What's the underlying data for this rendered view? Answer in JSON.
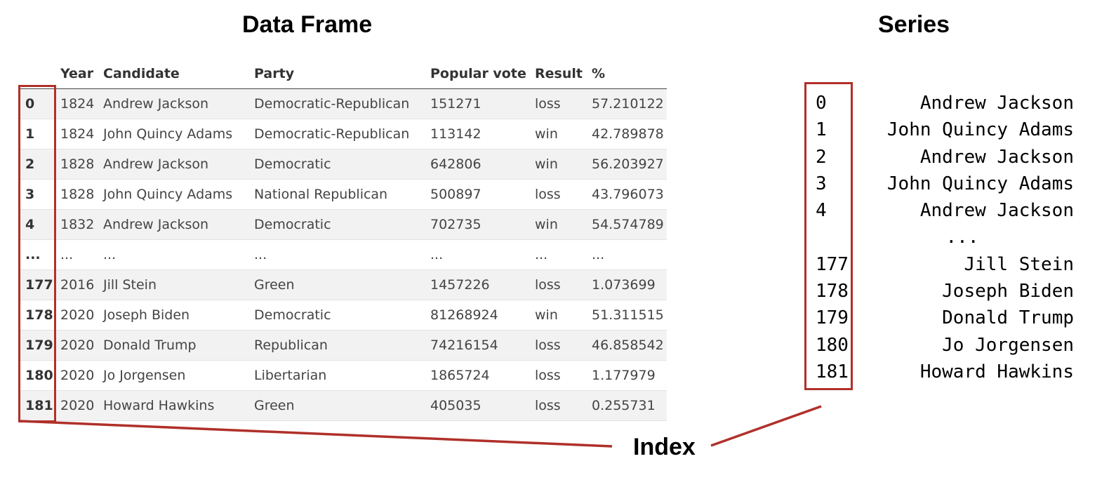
{
  "titles": {
    "data_frame": "Data Frame",
    "series": "Series",
    "index": "Index"
  },
  "accent_color": "#b0302a",
  "dataframe": {
    "columns": [
      "",
      "Year",
      "Candidate",
      "Party",
      "Popular vote",
      "Result",
      "%"
    ],
    "rows": [
      [
        "0",
        "1824",
        "Andrew Jackson",
        "Democratic-Republican",
        "151271",
        "loss",
        "57.210122"
      ],
      [
        "1",
        "1824",
        "John Quincy Adams",
        "Democratic-Republican",
        "113142",
        "win",
        "42.789878"
      ],
      [
        "2",
        "1828",
        "Andrew Jackson",
        "Democratic",
        "642806",
        "win",
        "56.203927"
      ],
      [
        "3",
        "1828",
        "John Quincy Adams",
        "National Republican",
        "500897",
        "loss",
        "43.796073"
      ],
      [
        "4",
        "1832",
        "Andrew Jackson",
        "Democratic",
        "702735",
        "win",
        "54.574789"
      ],
      [
        "...",
        "...",
        "...",
        "...",
        "...",
        "...",
        "..."
      ],
      [
        "177",
        "2016",
        "Jill Stein",
        "Green",
        "1457226",
        "loss",
        "1.073699"
      ],
      [
        "178",
        "2020",
        "Joseph Biden",
        "Democratic",
        "81268924",
        "win",
        "51.311515"
      ],
      [
        "179",
        "2020",
        "Donald Trump",
        "Republican",
        "74216154",
        "loss",
        "46.858542"
      ],
      [
        "180",
        "2020",
        "Jo Jorgensen",
        "Libertarian",
        "1865724",
        "loss",
        "1.177979"
      ],
      [
        "181",
        "2020",
        "Howard Hawkins",
        "Green",
        "405035",
        "loss",
        "0.255731"
      ]
    ]
  },
  "series": {
    "rows": [
      {
        "index": "0",
        "value": "Andrew Jackson"
      },
      {
        "index": "1",
        "value": "John Quincy Adams"
      },
      {
        "index": "2",
        "value": "Andrew Jackson"
      },
      {
        "index": "3",
        "value": "John Quincy Adams"
      },
      {
        "index": "4",
        "value": "Andrew Jackson"
      },
      {
        "index": "",
        "value": "..."
      },
      {
        "index": "177",
        "value": "Jill Stein"
      },
      {
        "index": "178",
        "value": "Joseph Biden"
      },
      {
        "index": "179",
        "value": "Donald Trump"
      },
      {
        "index": "180",
        "value": "Jo Jorgensen"
      },
      {
        "index": "181",
        "value": "Howard Hawkins"
      }
    ]
  }
}
